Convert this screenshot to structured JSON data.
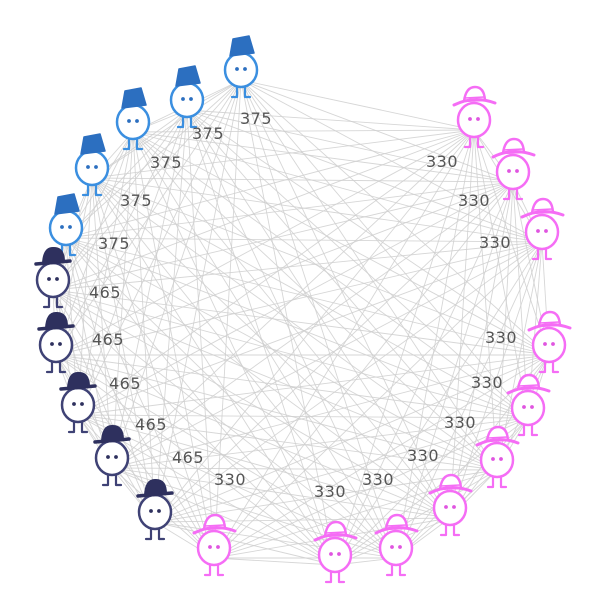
{
  "colors": {
    "blue": "#3b8fe0",
    "blue_dark": "#2c6fc0",
    "navy": "#3f4275",
    "navy_dark": "#2e305e",
    "pink": "#f56df5",
    "pink_dark": "#e055e0",
    "edge": "#cfcfcf",
    "label": "#555555"
  },
  "nodes": [
    {
      "group": "blue",
      "hat": "fez",
      "value": "375"
    },
    {
      "group": "blue",
      "hat": "fez",
      "value": "375"
    },
    {
      "group": "blue",
      "hat": "fez",
      "value": "375"
    },
    {
      "group": "blue",
      "hat": "fez",
      "value": "375"
    },
    {
      "group": "blue",
      "hat": "fez",
      "value": "375"
    },
    {
      "group": "navy",
      "hat": "bowler",
      "value": "465"
    },
    {
      "group": "navy",
      "hat": "bowler",
      "value": "465"
    },
    {
      "group": "navy",
      "hat": "bowler",
      "value": "465"
    },
    {
      "group": "navy",
      "hat": "bowler",
      "value": "465"
    },
    {
      "group": "navy",
      "hat": "bowler",
      "value": "465"
    },
    {
      "group": "pink",
      "hat": "sunhat",
      "value": "330"
    },
    {
      "group": "pink",
      "hat": "sunhat",
      "value": "330"
    },
    {
      "group": "pink",
      "hat": "sunhat",
      "value": "330"
    },
    {
      "group": "pink",
      "hat": "sunhat",
      "value": "330"
    },
    {
      "group": "pink",
      "hat": "sunhat",
      "value": "330"
    },
    {
      "group": "pink",
      "hat": "sunhat",
      "value": "330"
    },
    {
      "group": "pink",
      "hat": "sunhat",
      "value": "330"
    },
    {
      "group": "pink",
      "hat": "sunhat",
      "value": "330"
    },
    {
      "group": "pink",
      "hat": "sunhat",
      "value": "330"
    },
    {
      "group": "pink",
      "hat": "sunhat",
      "value": "330"
    }
  ]
}
